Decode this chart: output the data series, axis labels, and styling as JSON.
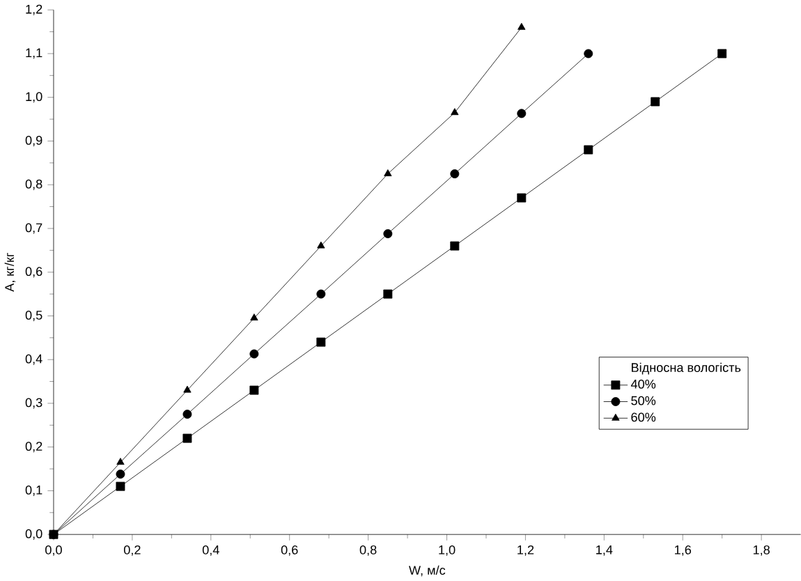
{
  "chart_data": {
    "type": "line",
    "xlabel": "W, м/с",
    "ylabel": "A, кг/кг",
    "legend_title": "Відносна вологість",
    "legend": "bottom right",
    "line_style": "solid",
    "grid": false,
    "xlim": [
      0,
      1.9
    ],
    "ylim": [
      0,
      1.2
    ],
    "xticks": [
      {
        "value": 0,
        "label": "0,0"
      },
      {
        "value": 0.2,
        "label": "0,2"
      },
      {
        "value": 0.4,
        "label": "0,4"
      },
      {
        "value": 0.6,
        "label": "0,6"
      },
      {
        "value": 0.8,
        "label": "0,8"
      },
      {
        "value": 1.0,
        "label": "1,0"
      },
      {
        "value": 1.2,
        "label": "1,2"
      },
      {
        "value": 1.4,
        "label": "1,4"
      },
      {
        "value": 1.6,
        "label": "1,6"
      },
      {
        "value": 1.8,
        "label": "1,8"
      }
    ],
    "yticks": [
      {
        "value": 0,
        "label": "0,0"
      },
      {
        "value": 0.1,
        "label": "0,1"
      },
      {
        "value": 0.2,
        "label": "0,2"
      },
      {
        "value": 0.3,
        "label": "0,3"
      },
      {
        "value": 0.4,
        "label": "0,4"
      },
      {
        "value": 0.5,
        "label": "0,5"
      },
      {
        "value": 0.6,
        "label": "0,6"
      },
      {
        "value": 0.7,
        "label": "0,7"
      },
      {
        "value": 0.8,
        "label": "0,8"
      },
      {
        "value": 0.9,
        "label": "0,9"
      },
      {
        "value": 1.0,
        "label": "1,0"
      },
      {
        "value": 1.1,
        "label": "1,1"
      },
      {
        "value": 1.2,
        "label": "1,2"
      }
    ],
    "series": [
      {
        "name": "40%",
        "color": "#000000",
        "marker": "square",
        "x": [
          0,
          0.17,
          0.34,
          0.51,
          0.68,
          0.85,
          1.02,
          1.19,
          1.36,
          1.53,
          1.7
        ],
        "values": [
          0,
          0.11,
          0.22,
          0.33,
          0.44,
          0.55,
          0.66,
          0.77,
          0.88,
          0.99,
          1.1
        ]
      },
      {
        "name": "50%",
        "color": "#000000",
        "marker": "circle",
        "x": [
          0,
          0.17,
          0.34,
          0.51,
          0.68,
          0.85,
          1.02,
          1.19,
          1.36
        ],
        "values": [
          0,
          0.138,
          0.275,
          0.413,
          0.55,
          0.688,
          0.825,
          0.963,
          1.1
        ]
      },
      {
        "name": "60%",
        "color": "#000000",
        "marker": "triangle",
        "x": [
          0,
          0.17,
          0.34,
          0.51,
          0.68,
          0.85,
          1.02,
          1.19
        ],
        "values": [
          0,
          0.165,
          0.33,
          0.495,
          0.66,
          0.825,
          0.965,
          1.16
        ]
      }
    ]
  }
}
